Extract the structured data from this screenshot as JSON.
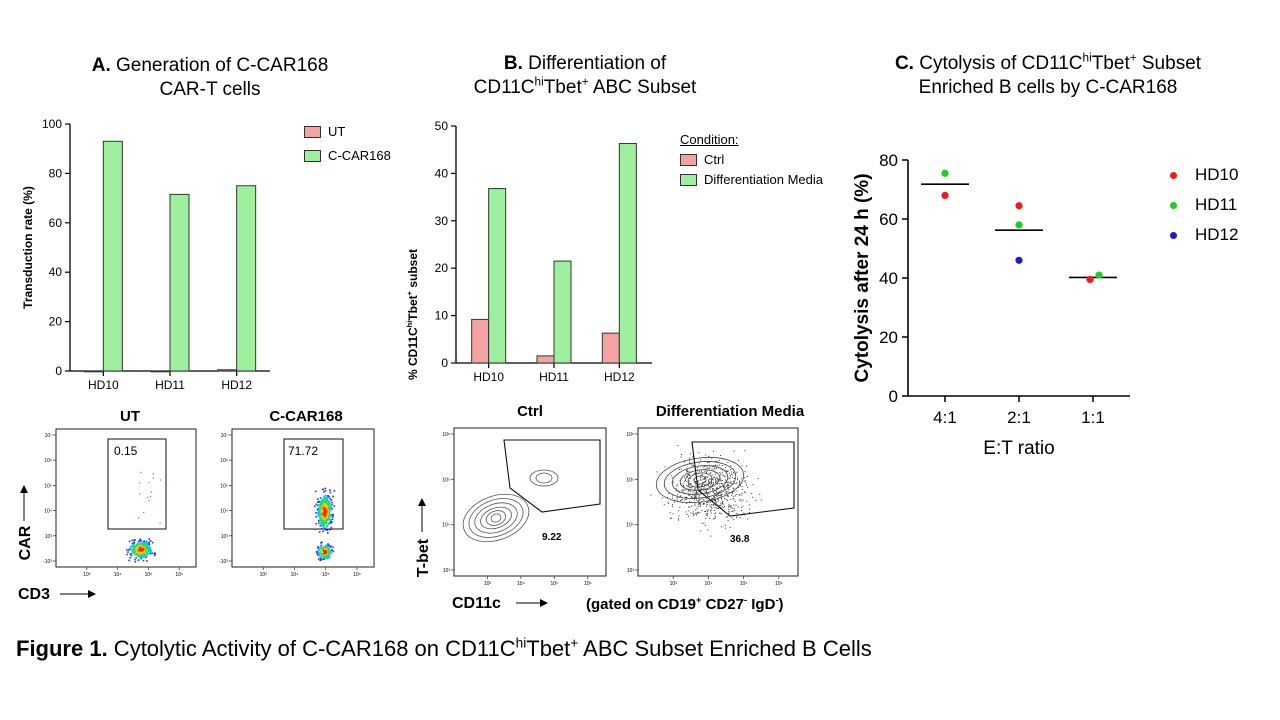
{
  "panel_a": {
    "letter": "A.",
    "title_l1": "Generation of C-CAR168",
    "title_l2": "CAR-T cells",
    "ylabel": "Transduction rate (%)",
    "legend": [
      {
        "name": "UT",
        "color": "#f4a3a3"
      },
      {
        "name": "C-CAR168",
        "color": "#9ef09e"
      }
    ]
  },
  "panel_b": {
    "letter": "B.",
    "title_l1": "Differentiation of",
    "title_l2_a": "CD11C",
    "title_l2_sup1": "hi",
    "title_l2_b": "Tbet",
    "title_l2_sup2": "+",
    "title_l2_c": " ABC Subset",
    "ylabel_a": "% CD11C",
    "ylabel_sup1": "hi",
    "ylabel_b": "Tbet",
    "ylabel_sup2": "+",
    "ylabel_c": " subset",
    "legend_title": "Condition:",
    "legend": [
      {
        "name": "Ctrl",
        "color": "#f4a3a3"
      },
      {
        "name": "Differentiation Media",
        "color": "#9ef09e"
      }
    ]
  },
  "panel_c": {
    "letter": "C.",
    "title_l1_a": "Cytolysis of CD11C",
    "title_l1_sup1": "hi",
    "title_l1_b": "Tbet",
    "title_l1_sup2": "+",
    "title_l1_c": " Subset",
    "title_l2": "Enriched B cells by C-CAR168",
    "ylabel": "Cytolysis after 24 h (%)",
    "xlabel": "E:T ratio",
    "legend": [
      {
        "name": "HD10",
        "color": "#ee1c1c"
      },
      {
        "name": "HD11",
        "color": "#22cc22"
      },
      {
        "name": "HD12",
        "color": "#1c1ccc"
      }
    ]
  },
  "chart_data": [
    {
      "type": "bar",
      "categories": [
        "HD10",
        "HD11",
        "HD12"
      ],
      "series": [
        {
          "name": "UT",
          "values": [
            0,
            0,
            0.5
          ]
        },
        {
          "name": "C-CAR168",
          "values": [
            93,
            71.5,
            75
          ]
        }
      ],
      "ylabel": "Transduction rate (%)",
      "ylim": [
        0,
        100
      ],
      "yticks": [
        0,
        20,
        40,
        60,
        80,
        100
      ],
      "legend": "top-right"
    },
    {
      "type": "bar",
      "categories": [
        "HD10",
        "HD11",
        "HD12"
      ],
      "series": [
        {
          "name": "Ctrl",
          "values": [
            9.2,
            1.5,
            6.3
          ]
        },
        {
          "name": "Differentiation Media",
          "values": [
            36.8,
            21.5,
            46.3
          ]
        }
      ],
      "ylabel": "% CD11ChiTbet+ subset",
      "ylim": [
        0,
        50
      ],
      "yticks": [
        0,
        10,
        20,
        30,
        40,
        50
      ],
      "legend": "top-right"
    },
    {
      "type": "scatter",
      "categories": [
        "4:1",
        "2:1",
        "1:1"
      ],
      "series": [
        {
          "name": "HD10",
          "values": [
            68,
            64.5,
            39.5
          ]
        },
        {
          "name": "HD11",
          "values": [
            75.5,
            58,
            41
          ]
        },
        {
          "name": "HD12",
          "values": [
            null,
            46,
            null
          ]
        }
      ],
      "means": [
        71.8,
        56.2,
        40.2
      ],
      "ylabel": "Cytolysis after 24 h (%)",
      "xlabel": "E:T ratio",
      "ylim": [
        0,
        80
      ],
      "yticks": [
        0,
        20,
        40,
        60,
        80
      ],
      "legend": "right"
    }
  ],
  "flow_a": {
    "plots": [
      {
        "title": "UT",
        "gate_value": "0.15"
      },
      {
        "title": "C-CAR168",
        "gate_value": "71.72"
      }
    ],
    "y_label": "CAR",
    "x_label": "CD3",
    "ticks_x": [
      "10³",
      "10⁴",
      "10⁵",
      "10⁶"
    ],
    "ticks_y": [
      "10⁷",
      "10⁶",
      "10⁵",
      "10⁴",
      "10³",
      "-10³"
    ]
  },
  "flow_b": {
    "plots": [
      {
        "title": "Ctrl",
        "gate_value": "9.22"
      },
      {
        "title": "Differentiation Media",
        "gate_value": "36.8"
      }
    ],
    "y_label": "T-bet",
    "x_label": "CD11c",
    "gated_a": "(gated on CD19",
    "gated_sup1": "+",
    "gated_b": " CD27",
    "gated_sup2": "-",
    "gated_c": " IgD",
    "gated_sup3": "-",
    "gated_d": ")",
    "ticks_x": [
      "10³",
      "10⁴",
      "10⁵",
      "10⁶"
    ],
    "ticks_y": [
      "10⁶",
      "10⁵",
      "10⁴",
      "10³"
    ]
  },
  "caption": {
    "bold": "Figure 1.",
    "text_a": " Cytolytic Activity of C-CAR168 on CD11C",
    "sup1": "hi",
    "text_b": "Tbet",
    "sup2": "+",
    "text_c": " ABC Subset Enriched B Cells"
  }
}
